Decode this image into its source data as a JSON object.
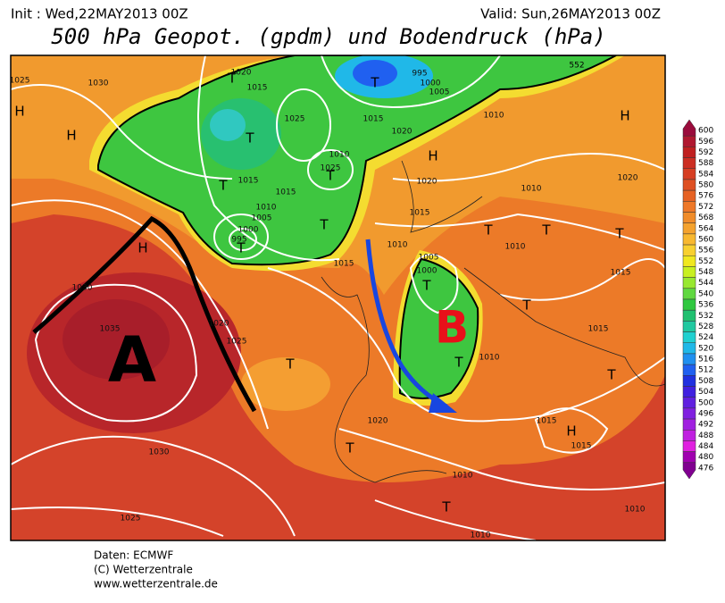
{
  "header": {
    "init": "Init : Wed,22MAY2013 00Z",
    "valid": "Valid: Sun,26MAY2013 00Z",
    "title": "500 hPa Geopot. (gpdm) und Bodendruck (hPa)"
  },
  "map": {
    "labels": [
      "1025",
      "H",
      "1030",
      "H",
      "T",
      "1020",
      "1015",
      "T",
      "1025",
      "T",
      "1015",
      "T",
      "1010",
      "1025",
      "1015",
      "1010",
      "1005",
      "1000",
      "995",
      "T",
      "T",
      "1015",
      "H",
      "1030",
      "1035",
      "1020",
      "1025",
      "T",
      "1030",
      "1025",
      "T",
      "995",
      "1000",
      "1005",
      "1010",
      "1015",
      "1020",
      "H",
      "1020",
      "1015",
      "1010",
      "T",
      "1010",
      "T",
      "T",
      "1005",
      "1000",
      "T",
      "T",
      "1015",
      "1015",
      "T",
      "1010",
      "1020",
      "T",
      "1015",
      "H",
      "1015",
      "T",
      "1010",
      "T",
      "1010",
      "1010",
      "H",
      "1020",
      "1010",
      "552"
    ],
    "annotations": [
      "A",
      "B"
    ]
  },
  "legend": {
    "levels": [
      600,
      596,
      592,
      588,
      584,
      580,
      576,
      572,
      568,
      564,
      560,
      556,
      552,
      548,
      544,
      540,
      536,
      532,
      528,
      524,
      520,
      516,
      512,
      508,
      504,
      500,
      496,
      492,
      488,
      484,
      480,
      476
    ],
    "colors": [
      "#9a0c3c",
      "#b01830",
      "#c02020",
      "#cc2e22",
      "#d63e22",
      "#de5022",
      "#e66224",
      "#ee7828",
      "#f08c2a",
      "#f4a22e",
      "#f8b830",
      "#f8d030",
      "#f0e820",
      "#c8f020",
      "#98e830",
      "#60d840",
      "#30c840",
      "#20c070",
      "#20c8a0",
      "#20d0d0",
      "#20b8e8",
      "#2090f0",
      "#2060f0",
      "#2030e0",
      "#4020e0",
      "#6020e0",
      "#8020e0",
      "#a020e0",
      "#c020e0",
      "#e020e0",
      "#a000b0",
      "#800090"
    ]
  },
  "footer": [
    "Daten: ECMWF",
    "(C) Wetterzentrale",
    "www.wetterzentrale.de"
  ]
}
